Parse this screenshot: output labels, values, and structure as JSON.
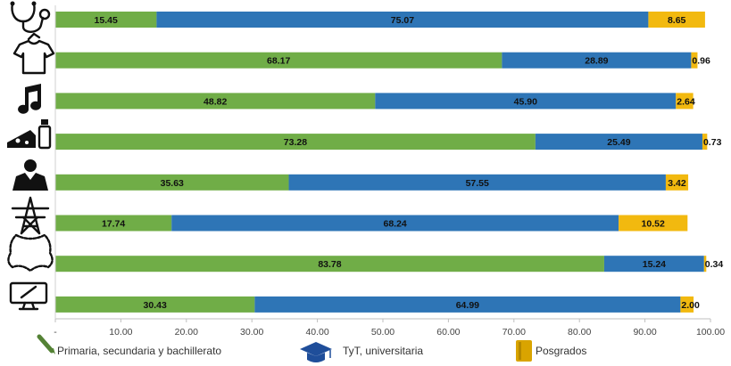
{
  "chart_data": {
    "type": "bar",
    "orientation": "horizontal",
    "stacked": true,
    "categories": [
      "stethoscope-icon",
      "shirt-icon",
      "music-note-icon",
      "cheese-milk-icon",
      "person-icon",
      "power-tower-icon",
      "leather-hide-icon",
      "computer-monitor-icon"
    ],
    "series": [
      {
        "name": "Primaria, secundaria y bachillerato",
        "color": "#70ad47",
        "values": [
          15.45,
          68.17,
          48.82,
          73.28,
          35.63,
          17.74,
          83.78,
          30.43
        ],
        "labels": [
          "15.45",
          "68.17",
          "48.82",
          "73.28",
          "35.63",
          "17.74",
          "83.78",
          "30.43"
        ]
      },
      {
        "name": "TyT, universitaria",
        "color": "#2e75b6",
        "values": [
          75.07,
          28.89,
          45.9,
          25.49,
          57.55,
          68.24,
          15.24,
          64.99
        ],
        "labels": [
          "75.07",
          "28.89",
          "45.90",
          "25.49",
          "57.55",
          "68.24",
          "15.24",
          "64.99"
        ]
      },
      {
        "name": "Posgrados",
        "color": "#f2b90f",
        "values": [
          8.65,
          0.96,
          2.64,
          0.73,
          3.42,
          10.52,
          0.34,
          2.0
        ],
        "labels": [
          "8.65",
          "0.96",
          "2.64",
          "0.73",
          "3.42",
          "10.52",
          "0.34",
          "2.00"
        ]
      }
    ],
    "xlim": [
      0,
      100
    ],
    "xticks": [
      "-",
      "10.00",
      "20.00",
      "30.00",
      "40.00",
      "50.00",
      "60.00",
      "70.00",
      "80.00",
      "90.00",
      "100.00"
    ],
    "legend_position": "bottom",
    "legend_icons": [
      "pencil-icon",
      "graduation-cap-icon",
      "book-icon"
    ],
    "grid": false
  }
}
